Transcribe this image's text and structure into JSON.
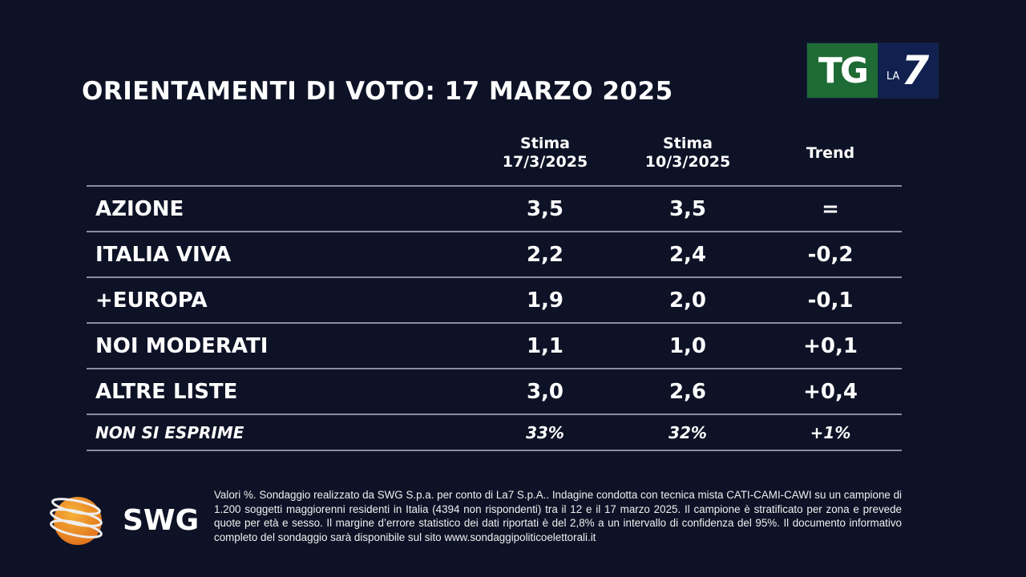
{
  "title": "ORIENTAMENTI DI VOTO: 17 MARZO 2025",
  "logo": {
    "tg": "TG",
    "la": "LA",
    "seven": "7"
  },
  "columns": [
    {
      "line1": "Stima",
      "line2": "17/3/2025"
    },
    {
      "line1": "Stima",
      "line2": "10/3/2025"
    },
    {
      "line1": "Trend",
      "line2": ""
    }
  ],
  "rows": [
    {
      "party": "AZIONE",
      "current": "3,5",
      "previous": "3,5",
      "trend": "="
    },
    {
      "party": "ITALIA VIVA",
      "current": "2,2",
      "previous": "2,4",
      "trend": "-0,2"
    },
    {
      "party": "+EUROPA",
      "current": "1,9",
      "previous": "2,0",
      "trend": "-0,1"
    },
    {
      "party": "NOI MODERATI",
      "current": "1,1",
      "previous": "1,0",
      "trend": "+0,1"
    },
    {
      "party": "ALTRE LISTE",
      "current": "3,0",
      "previous": "2,6",
      "trend": "+0,4"
    },
    {
      "party": "NON SI ESPRIME",
      "current": "33%",
      "previous": "32%",
      "trend": "+1%"
    }
  ],
  "swg_logo": "SWG",
  "footer": "Valori %. Sondaggio realizzato da SWG S.p.a. per conto di La7 S.p.A.. Indagine condotta con tecnica mista CATI-CAMI-CAWI su un campione di 1.200 soggetti maggiorenni residenti in Italia (4394 non rispondenti) tra il 12 e il 17 marzo 2025. Il campione è stratificato per zona e prevede quote per età e sesso. Il margine d’errore statistico dei dati riportati è del 2,8% a un intervallo di confidenza del 95%. Il documento informativo completo del sondaggio sarà disponibile sul sito www.sondaggipoliticoelettorali.it"
}
